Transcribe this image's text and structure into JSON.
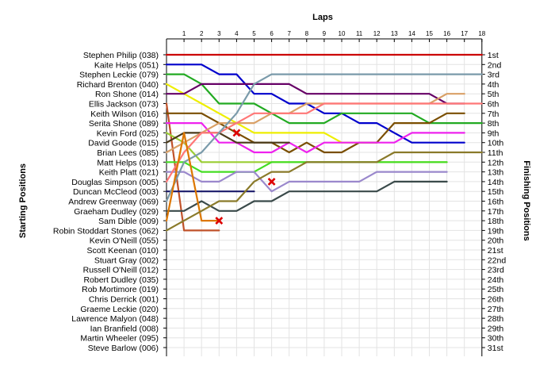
{
  "chart_data": {
    "type": "line",
    "title": "",
    "xlabel": "Laps",
    "ylabel_left": "Starting Positions",
    "ylabel_right": "Finishing Positions",
    "laps": [
      0,
      1,
      2,
      3,
      4,
      5,
      6,
      7,
      8,
      9,
      10,
      11,
      12,
      13,
      14,
      15,
      16,
      17,
      18
    ],
    "lap_labels": [
      "1",
      "2",
      "3",
      "4",
      "5",
      "6",
      "7",
      "8",
      "9",
      "10",
      "11",
      "12",
      "13",
      "14",
      "15",
      "16",
      "17",
      "18"
    ],
    "drivers": [
      "Stephen Philip (038)",
      "Kaite Helps (051)",
      "Stephen Leckie (079)",
      "Richard Brenton (040)",
      "Ron Shone (014)",
      "Ellis Jackson (073)",
      "Keith Wilson (016)",
      "Serita Shone (089)",
      "Kevin Ford (025)",
      "David Goode (015)",
      "Brian Lees (085)",
      "Matt Helps (013)",
      "Keith Platt (021)",
      "Douglas Simpson (005)",
      "Duncan McCleod (003)",
      "Andrew Greenway (069)",
      "Graeham Dudley (029)",
      "Sam Dible (009)",
      "Robin Stoddart Stones (062)",
      "Kevin O'Neill (055)",
      "Scott Keenan (010)",
      "Stuart Gray (002)",
      "Russell O'Neill (012)",
      "Robert Dudley (035)",
      "Rob Mortimore (019)",
      "Chris Derrick (001)",
      "Graeme Leckie (020)",
      "Lawrence Malyon (048)",
      "Ian Branfield (008)",
      "Martin Wheeler (095)",
      "Steve Barlow (006)"
    ],
    "finishing_positions": [
      "1st",
      "2nd",
      "3rd",
      "4th",
      "5th",
      "6th",
      "7th",
      "8th",
      "9th",
      "10th",
      "11th",
      "12th",
      "13th",
      "14th",
      "15th",
      "16th",
      "17th",
      "18th",
      "19th",
      "20th",
      "21st",
      "22nd",
      "23rd",
      "24th",
      "25th",
      "26th",
      "27th",
      "28th",
      "29th",
      "30th",
      "31st"
    ],
    "series": [
      {
        "color": "#cc0000",
        "positions": [
          1,
          1,
          1,
          1,
          1,
          1,
          1,
          1,
          1,
          1,
          1,
          1,
          1,
          1,
          1,
          1,
          1,
          1,
          1
        ]
      },
      {
        "color": "#0000cc",
        "positions": [
          2,
          2,
          2,
          3,
          3,
          5,
          5,
          6,
          6,
          7,
          7,
          8,
          8,
          9,
          10,
          10,
          10,
          10
        ]
      },
      {
        "color": "#22aa22",
        "positions": [
          3,
          3,
          4,
          6,
          6,
          6,
          7,
          8,
          8,
          8,
          7,
          7,
          7,
          7,
          7,
          8,
          8,
          8,
          8
        ]
      },
      {
        "color": "#eeee00",
        "positions": [
          4,
          5,
          6,
          7,
          8,
          9,
          9,
          9,
          9,
          9,
          10,
          10,
          10
        ]
      },
      {
        "color": "#660066",
        "positions": [
          5,
          5,
          4,
          4,
          4,
          4,
          4,
          4,
          5,
          5,
          5,
          5,
          5,
          5,
          5,
          5,
          6,
          6
        ]
      },
      {
        "color": "#c0522a",
        "positions": [
          6,
          19,
          19,
          19
        ]
      },
      {
        "color": "#7a4e00",
        "positions": [
          7,
          7,
          7,
          8,
          9,
          10,
          10,
          11,
          10,
          11,
          11,
          10,
          10,
          8,
          8,
          8,
          7,
          7
        ]
      },
      {
        "color": "#ee22ee",
        "positions": [
          8,
          8,
          8,
          10,
          10,
          11,
          11,
          10,
          11,
          10,
          10,
          10,
          10,
          10,
          9,
          9,
          9,
          9
        ]
      },
      {
        "color": "#9acd32",
        "positions": [
          9,
          10,
          12,
          12,
          12,
          12,
          12,
          12,
          12,
          12,
          12,
          12,
          12,
          12,
          12,
          12,
          12
        ]
      },
      {
        "color": "#4a3a1a",
        "positions": [
          10,
          9,
          9,
          9,
          10,
          10,
          10,
          10
        ]
      },
      {
        "color": "#d9a066",
        "positions": [
          11,
          10,
          9,
          8,
          8,
          8,
          7,
          7,
          6,
          6,
          6,
          6,
          6,
          6,
          6,
          6,
          5,
          5
        ]
      },
      {
        "color": "#44dd22",
        "positions": [
          12,
          12,
          13,
          13,
          13,
          13,
          12,
          12,
          12,
          12,
          12,
          12,
          12,
          12,
          12,
          12,
          12
        ]
      },
      {
        "color": "#9a88cc",
        "positions": [
          13,
          13,
          14,
          14,
          13,
          13,
          15,
          14,
          14,
          14,
          14,
          14,
          13,
          13,
          13,
          13,
          13
        ]
      },
      {
        "color": "#ff7777",
        "positions": [
          14,
          11,
          9,
          9,
          8,
          7,
          7,
          7,
          7,
          6,
          6,
          6,
          6,
          6,
          6,
          6,
          6,
          6,
          6
        ]
      },
      {
        "color": "#1a1a6a",
        "positions": [
          15,
          15,
          15,
          15,
          15,
          15
        ]
      },
      {
        "color": "#7a9aaa",
        "positions": [
          16,
          12,
          11,
          9,
          7,
          4,
          3,
          3,
          3,
          3,
          3,
          3,
          3,
          3,
          3,
          3,
          3,
          3,
          3
        ]
      },
      {
        "color": "#3a4a4a",
        "positions": [
          17,
          17,
          16,
          17,
          17,
          16,
          16,
          15,
          15,
          15,
          15,
          15,
          15,
          14,
          14,
          14,
          14
        ]
      },
      {
        "color": "#dd7700",
        "positions": [
          18,
          9,
          18,
          18
        ]
      },
      {
        "color": "#8a7a2a",
        "positions": [
          19,
          18,
          17,
          16,
          16,
          14,
          13,
          13,
          12,
          12,
          12,
          12,
          12,
          11,
          11,
          11,
          11,
          11,
          11
        ]
      }
    ],
    "retired_markers": [
      {
        "lap": 3,
        "position": 18
      },
      {
        "lap": 4,
        "position": 9
      },
      {
        "lap": 6,
        "position": 14
      }
    ],
    "grid": true
  }
}
